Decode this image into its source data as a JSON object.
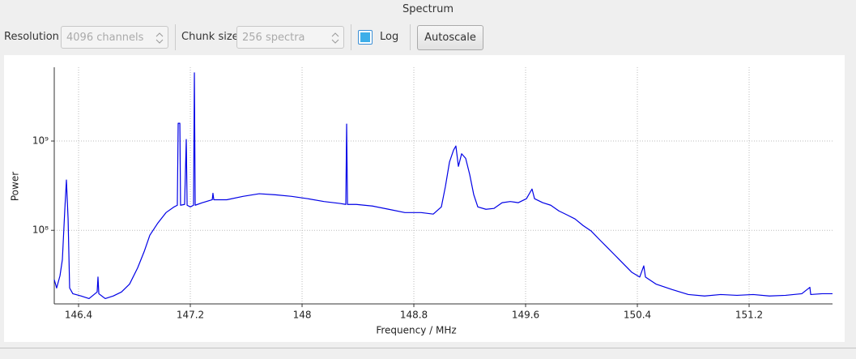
{
  "window_title": "Spectrum",
  "toolbar": {
    "resolution_label": "Resolution",
    "resolution_value": "4096 channels",
    "chunk_label": "Chunk size",
    "chunk_value": "256 spectra",
    "log_label": "Log",
    "log_checked": true,
    "autoscale_button": "Autoscale"
  },
  "chart_data": {
    "type": "line",
    "x_label": "Frequency / MHz",
    "y_label": "Power",
    "log_y": true,
    "grid": true,
    "xlim": [
      146.226,
      151.797
    ],
    "ylim": [
      15000000.0,
      6700000000.0
    ],
    "xticks": [
      146.4,
      147.2,
      148,
      148.8,
      149.6,
      150.4,
      151.2
    ],
    "yticks": [
      {
        "value": 100000000.0,
        "label": "10⁸"
      },
      {
        "value": 1000000000.0,
        "label": "10⁹"
      }
    ],
    "x": [
      146.226,
      146.243,
      146.267,
      146.284,
      146.301,
      146.313,
      146.325,
      146.336,
      146.359,
      146.417,
      146.475,
      146.533,
      146.539,
      146.545,
      146.591,
      146.649,
      146.707,
      146.765,
      146.823,
      146.87,
      146.91,
      146.968,
      147.026,
      147.084,
      147.107,
      147.113,
      147.125,
      147.13,
      147.159,
      147.171,
      147.177,
      147.2,
      147.223,
      147.229,
      147.235,
      147.287,
      147.357,
      147.362,
      147.368,
      147.461,
      147.577,
      147.693,
      147.809,
      147.925,
      148.041,
      148.157,
      148.272,
      148.313,
      148.319,
      148.325,
      148.388,
      148.504,
      148.62,
      148.736,
      148.852,
      148.939,
      148.997,
      149.026,
      149.055,
      149.084,
      149.101,
      149.119,
      149.142,
      149.171,
      149.2,
      149.229,
      149.258,
      149.316,
      149.374,
      149.432,
      149.49,
      149.548,
      149.606,
      149.646,
      149.664,
      149.722,
      149.78,
      149.838,
      149.896,
      149.954,
      150.012,
      150.07,
      150.128,
      150.186,
      150.243,
      150.301,
      150.359,
      150.417,
      150.446,
      150.458,
      150.533,
      150.649,
      150.765,
      150.881,
      150.997,
      151.113,
      151.229,
      151.345,
      151.461,
      151.577,
      151.635,
      151.641,
      151.722,
      151.797
    ],
    "series": [
      {
        "color": "#0000e6",
        "values": [
          28000000.0,
          22600000.0,
          31000000.0,
          47000000.0,
          165000000.0,
          366000000.0,
          134000000.0,
          22600000.0,
          19500000.0,
          18400000.0,
          17200000.0,
          20400000.0,
          30000000.0,
          19500000.0,
          17200000.0,
          18400000.0,
          20400000.0,
          25000000.0,
          38000000.0,
          58000000.0,
          88000000.0,
          121000000.0,
          158000000.0,
          183000000.0,
          191000000.0,
          1580000000.0,
          1580000000.0,
          191000000.0,
          195000000.0,
          1040000000.0,
          191000000.0,
          183000000.0,
          191000000.0,
          5800000000.0,
          191000000.0,
          204000000.0,
          220000000.0,
          260000000.0,
          220000000.0,
          220000000.0,
          240000000.0,
          257000000.0,
          250000000.0,
          240000000.0,
          226000000.0,
          210000000.0,
          200000000.0,
          195000000.0,
          1550000000.0,
          195000000.0,
          195000000.0,
          187000000.0,
          172000000.0,
          158000000.0,
          158000000.0,
          152000000.0,
          183000000.0,
          310000000.0,
          580000000.0,
          790000000.0,
          880000000.0,
          520000000.0,
          720000000.0,
          640000000.0,
          420000000.0,
          250000000.0,
          183000000.0,
          172000000.0,
          176000000.0,
          204000000.0,
          210000000.0,
          204000000.0,
          226000000.0,
          290000000.0,
          226000000.0,
          204000000.0,
          191000000.0,
          165000000.0,
          149000000.0,
          134000000.0,
          113000000.0,
          98000000.0,
          79000000.0,
          64000000.0,
          52000000.0,
          42000000.0,
          34000000.0,
          30000000.0,
          40000000.0,
          30000000.0,
          25000000.0,
          21700000.0,
          19100000.0,
          18400000.0,
          19100000.0,
          18700000.0,
          19100000.0,
          18400000.0,
          18700000.0,
          19500000.0,
          23000000.0,
          19100000.0,
          19500000.0,
          19500000.0
        ]
      }
    ]
  }
}
